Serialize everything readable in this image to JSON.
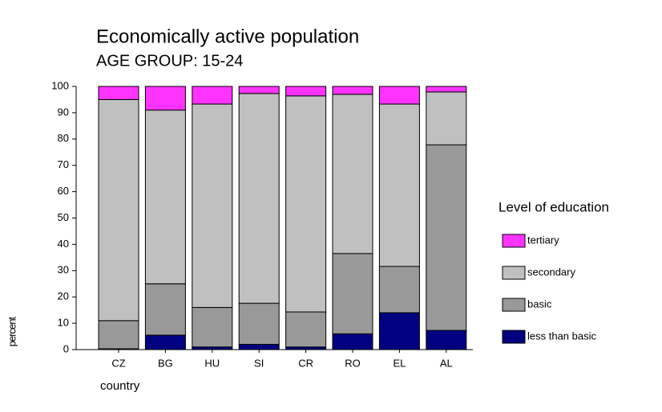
{
  "chart_data": {
    "type": "stacked-bar",
    "title": "Economically active population",
    "subtitle": "AGE GROUP: 15-24",
    "y_label": "percent",
    "x_label": "country",
    "legend_title": "Level of education",
    "categories": [
      "CZ",
      "BG",
      "HU",
      "SI",
      "CR",
      "RO",
      "EL",
      "AL"
    ],
    "series": [
      {
        "name": "less than basic",
        "color": "#000080",
        "values": [
          0.3,
          5.5,
          1,
          2,
          1,
          6,
          14,
          7.3
        ]
      },
      {
        "name": "basic",
        "color": "#999999",
        "values": [
          10.7,
          19.5,
          15,
          15.6,
          13.3,
          30.5,
          17.6,
          70.5
        ]
      },
      {
        "name": "secondary",
        "color": "#c0c0c0",
        "values": [
          84,
          66,
          77.3,
          79.7,
          82.1,
          60.5,
          61.7,
          20.1
        ]
      },
      {
        "name": "tertiary",
        "color": "#ff33ff",
        "values": [
          5,
          9,
          6.7,
          2.7,
          3.6,
          3,
          6.7,
          2.1
        ]
      }
    ],
    "ylim": [
      0,
      100
    ],
    "yticks": [
      0,
      10,
      20,
      30,
      40,
      50,
      60,
      70,
      80,
      90,
      100
    ]
  }
}
